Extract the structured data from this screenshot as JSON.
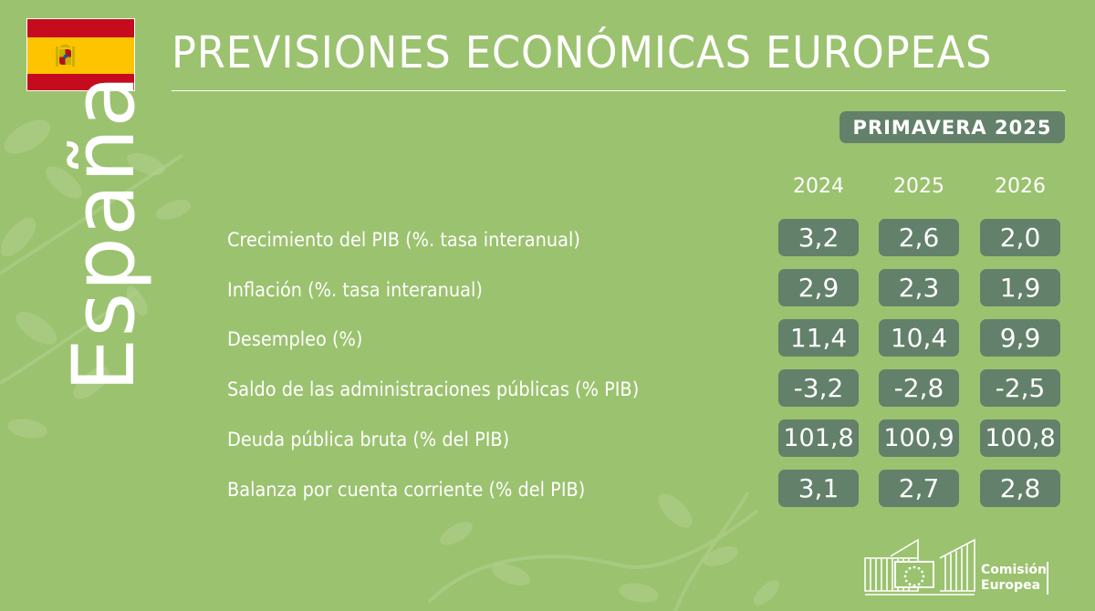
{
  "title": "PREVISIONES ECONÓMICAS EUROPEAS",
  "season": "PRIMAVERA 2025",
  "country": "España",
  "years": [
    "2024",
    "2025",
    "2026"
  ],
  "rows": [
    {
      "label": "Crecimiento del PIB (%. tasa interanual)",
      "values": [
        "3,2",
        "2,6",
        "2,0"
      ]
    },
    {
      "label": "Inflación (%. tasa interanual)",
      "values": [
        "2,9",
        "2,3",
        "1,9"
      ]
    },
    {
      "label": "Desempleo (%)",
      "values": [
        "11,4",
        "10,4",
        "9,9"
      ]
    },
    {
      "label": "Saldo de las administraciones públicas (% PIB)",
      "values": [
        "-3,2",
        "-2,8",
        "-2,5"
      ]
    },
    {
      "label": "Deuda pública bruta (% del PIB)",
      "values": [
        "101,8",
        "100,9",
        "100,8"
      ]
    },
    {
      "label": "Balanza por cuenta corriente (% del PIB)",
      "values": [
        "3,1",
        "2,7",
        "2,8"
      ]
    }
  ],
  "logo": {
    "line1": "Comisión",
    "line2": "Europea"
  },
  "colors": {
    "background": "#9bc26f",
    "box": "#63806a",
    "text": "#ffffff",
    "flag_red": "#c60b1e",
    "flag_yellow": "#ffc400"
  },
  "icons": {
    "flag": "spain-flag-icon",
    "logo": "european-commission-logo-icon",
    "decoration": "blossom-branch-decoration"
  }
}
